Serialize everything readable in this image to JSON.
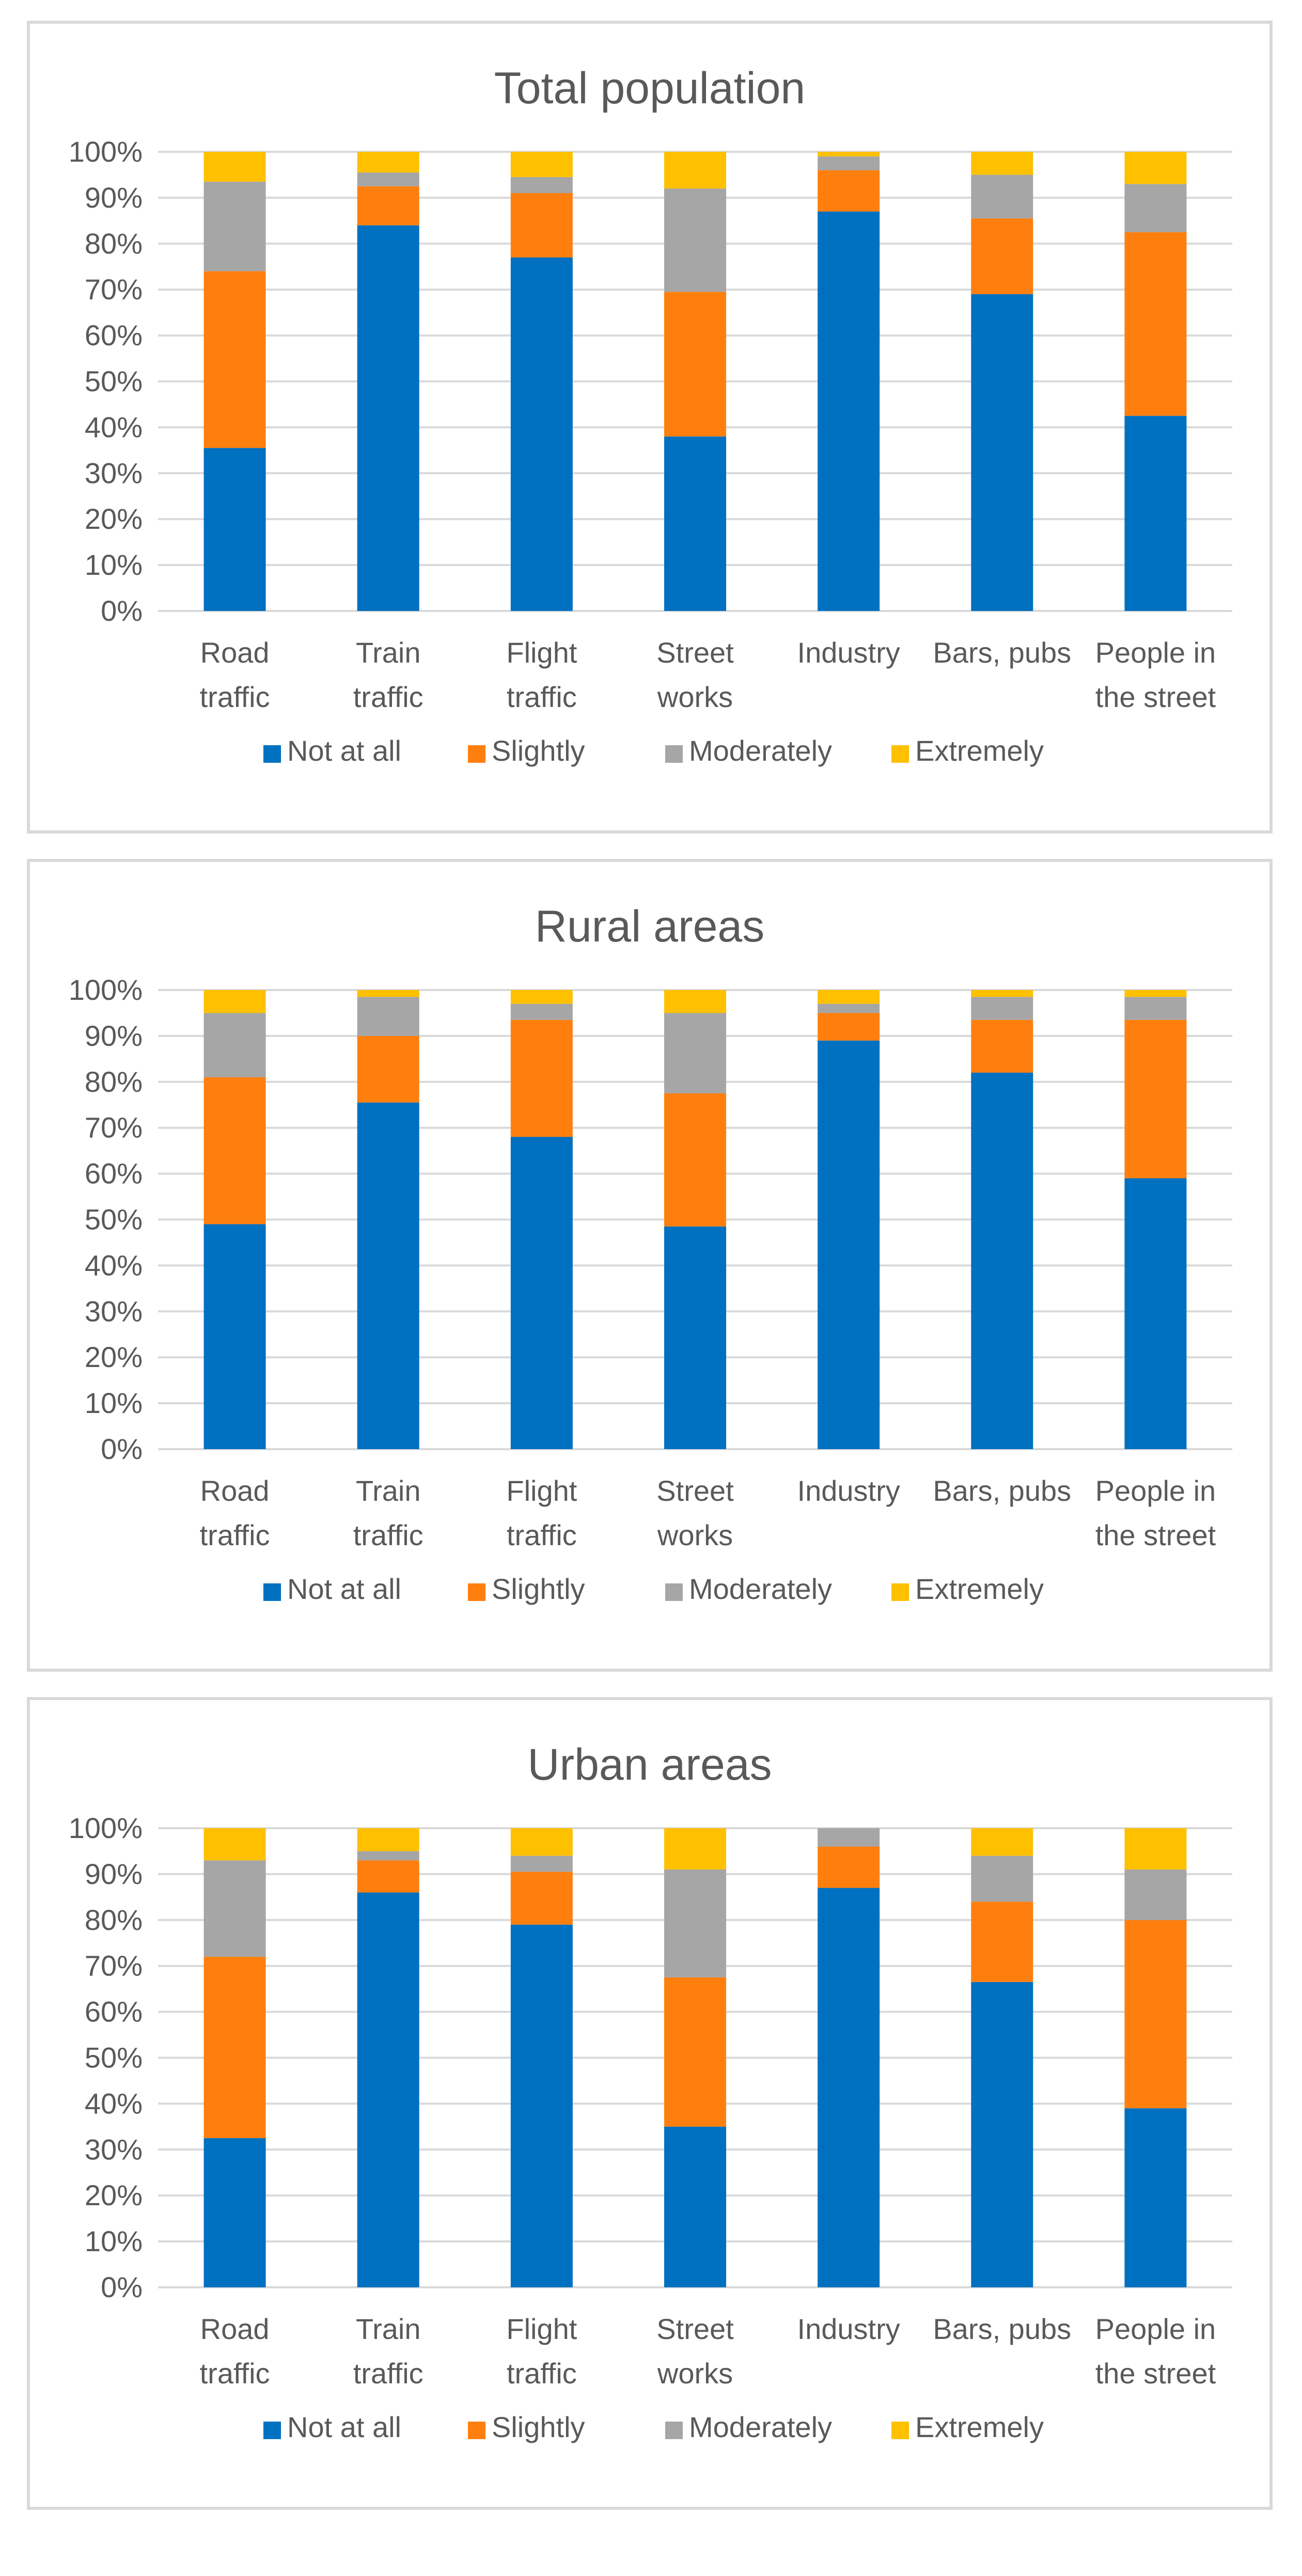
{
  "chart_data": [
    {
      "type": "bar",
      "stacked": true,
      "title": "Total population",
      "categories": [
        [
          "Road",
          "traffic"
        ],
        [
          "Train",
          "traffic"
        ],
        [
          "Flight",
          "traffic"
        ],
        [
          "Street",
          "works"
        ],
        [
          "Industry"
        ],
        [
          "Bars, pubs"
        ],
        [
          "People in",
          "the street"
        ]
      ],
      "series": [
        {
          "name": "Not at all",
          "color": "#0070C0",
          "values": [
            35.5,
            84,
            77,
            38,
            87,
            69,
            42.5
          ]
        },
        {
          "name": "Slightly",
          "color": "#FF7F0E",
          "values": [
            38.5,
            8.5,
            14,
            31.5,
            9,
            16.5,
            40
          ]
        },
        {
          "name": "Moderately",
          "color": "#A6A6A6",
          "values": [
            19.5,
            3,
            3.5,
            22.5,
            3,
            9.5,
            10.5
          ]
        },
        {
          "name": "Extremely",
          "color": "#FFC000",
          "values": [
            6.5,
            4.5,
            5.5,
            8,
            1,
            5,
            7
          ]
        }
      ],
      "yticks": [
        "0%",
        "10%",
        "20%",
        "30%",
        "40%",
        "50%",
        "60%",
        "70%",
        "80%",
        "90%",
        "100%"
      ],
      "ylim": [
        0,
        100
      ],
      "legend_position": "bottom"
    },
    {
      "type": "bar",
      "stacked": true,
      "title": "Rural areas",
      "categories": [
        [
          "Road",
          "traffic"
        ],
        [
          "Train",
          "traffic"
        ],
        [
          "Flight",
          "traffic"
        ],
        [
          "Street",
          "works"
        ],
        [
          "Industry"
        ],
        [
          "Bars, pubs"
        ],
        [
          "People in",
          "the street"
        ]
      ],
      "series": [
        {
          "name": "Not at all",
          "color": "#0070C0",
          "values": [
            49,
            75.5,
            68,
            48.5,
            89,
            82,
            59
          ]
        },
        {
          "name": "Slightly",
          "color": "#FF7F0E",
          "values": [
            32,
            14.5,
            25.5,
            29,
            6,
            11.5,
            34.5
          ]
        },
        {
          "name": "Moderately",
          "color": "#A6A6A6",
          "values": [
            14,
            8.5,
            3.5,
            17.5,
            2,
            5,
            5
          ]
        },
        {
          "name": "Extremely",
          "color": "#FFC000",
          "values": [
            5,
            1.5,
            3,
            5,
            3,
            1.5,
            1.5
          ]
        }
      ],
      "yticks": [
        "0%",
        "10%",
        "20%",
        "30%",
        "40%",
        "50%",
        "60%",
        "70%",
        "80%",
        "90%",
        "100%"
      ],
      "ylim": [
        0,
        100
      ],
      "legend_position": "bottom"
    },
    {
      "type": "bar",
      "stacked": true,
      "title": "Urban areas",
      "categories": [
        [
          "Road",
          "traffic"
        ],
        [
          "Train",
          "traffic"
        ],
        [
          "Flight",
          "traffic"
        ],
        [
          "Street",
          "works"
        ],
        [
          "Industry"
        ],
        [
          "Bars, pubs"
        ],
        [
          "People in",
          "the street"
        ]
      ],
      "series": [
        {
          "name": "Not at all",
          "color": "#0070C0",
          "values": [
            32.5,
            86,
            79,
            35,
            87,
            66.5,
            39
          ]
        },
        {
          "name": "Slightly",
          "color": "#FF7F0E",
          "values": [
            39.5,
            7,
            11.5,
            32.5,
            9,
            17.5,
            41
          ]
        },
        {
          "name": "Moderately",
          "color": "#A6A6A6",
          "values": [
            21,
            2,
            3.5,
            23.5,
            4,
            10,
            11
          ]
        },
        {
          "name": "Extremely",
          "color": "#FFC000",
          "values": [
            7,
            5,
            6,
            9,
            0,
            6,
            9
          ]
        }
      ],
      "yticks": [
        "0%",
        "10%",
        "20%",
        "30%",
        "40%",
        "50%",
        "60%",
        "70%",
        "80%",
        "90%",
        "100%"
      ],
      "ylim": [
        0,
        100
      ],
      "legend_position": "bottom"
    }
  ]
}
